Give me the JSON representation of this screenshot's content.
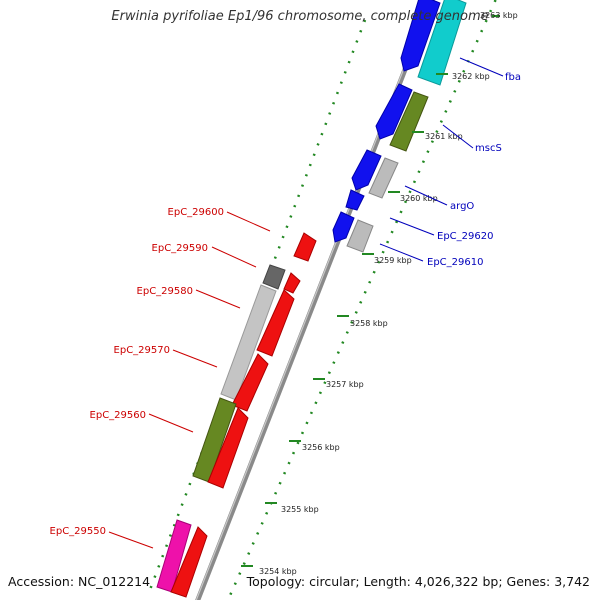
{
  "title": "Erwinia pyrifoliae Ep1/96 chromosome, complete genome",
  "footer": {
    "accession": "Accession: NC_012214",
    "summary": "Topology: circular; Length: 4,026,322 bp; Genes: 3,742"
  },
  "colors": {
    "plus_gene": "blue",
    "minus_gene": "red",
    "backbone": "gray",
    "rna_like": "cyan",
    "olive_feature": "olive",
    "pseudo_feature": "lightgray",
    "magenta_feature": "magenta",
    "tick_green": "green"
  },
  "ticks": [
    {
      "label": "3263 kbp"
    },
    {
      "label": "3262 kbp"
    },
    {
      "label": "3261 kbp"
    },
    {
      "label": "3260 kbp"
    },
    {
      "label": "3259 kbp"
    },
    {
      "label": "3258 kbp"
    },
    {
      "label": "3257 kbp"
    },
    {
      "label": "3256 kbp"
    },
    {
      "label": "3255 kbp"
    },
    {
      "label": "3254 kbp"
    }
  ],
  "gene_labels_right": [
    {
      "label": "fba"
    },
    {
      "label": "mscS"
    },
    {
      "label": "argO"
    },
    {
      "label": "EpC_29620"
    },
    {
      "label": "EpC_29610"
    }
  ],
  "gene_labels_left": [
    {
      "label": "EpC_29600"
    },
    {
      "label": "EpC_29590"
    },
    {
      "label": "EpC_29580"
    },
    {
      "label": "EpC_29570"
    },
    {
      "label": "EpC_29560"
    },
    {
      "label": "EpC_29550"
    }
  ]
}
